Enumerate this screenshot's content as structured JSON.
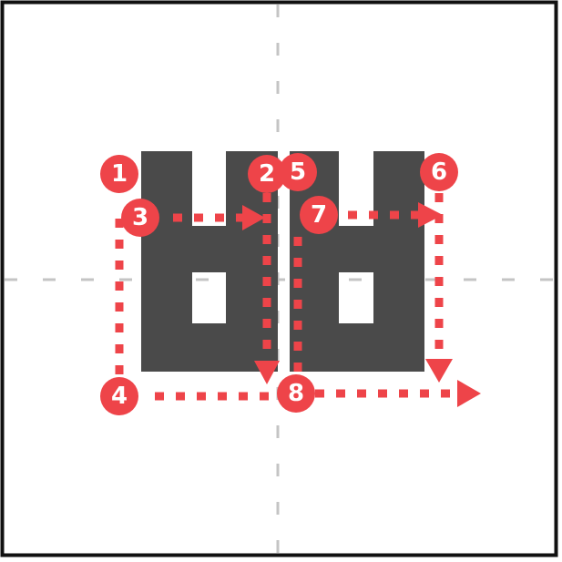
{
  "colors": {
    "frame": "#111111",
    "guide": "#c4c4c4",
    "glyph": "#4a4a4a",
    "accent": "#ee4449",
    "badge_text": "#ffffff"
  },
  "steps": [
    {
      "label": "1"
    },
    {
      "label": "2"
    },
    {
      "label": "3"
    },
    {
      "label": "4"
    },
    {
      "label": "5"
    },
    {
      "label": "6"
    },
    {
      "label": "7"
    },
    {
      "label": "8"
    }
  ]
}
